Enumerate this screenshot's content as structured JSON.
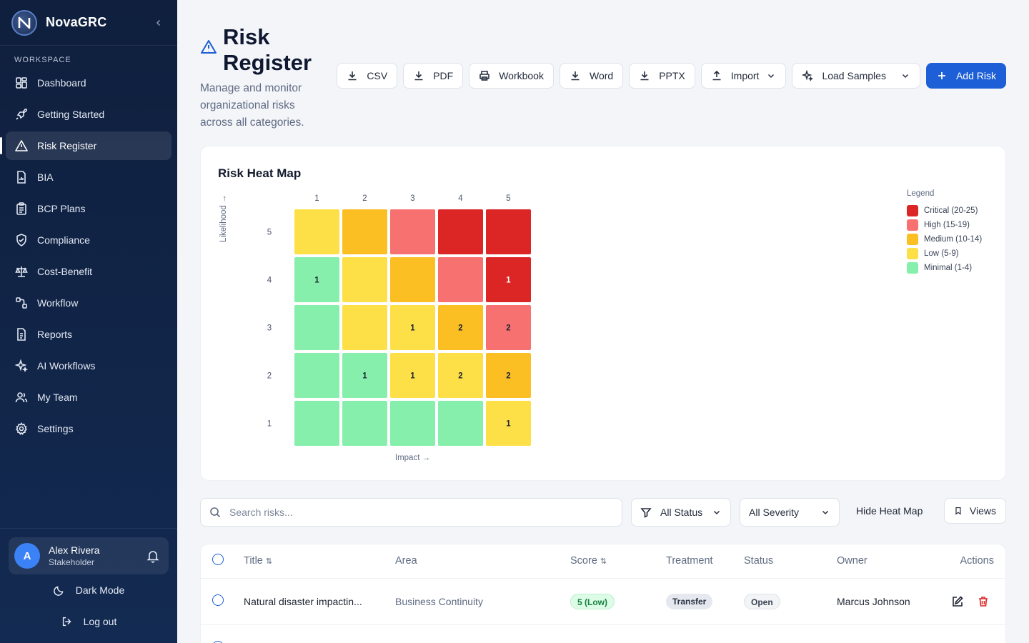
{
  "app": {
    "name": "NovaGRC"
  },
  "sidebar": {
    "section_label": "WORKSPACE",
    "items": [
      {
        "label": "Dashboard",
        "icon": "dashboard-icon"
      },
      {
        "label": "Getting Started",
        "icon": "rocket-icon"
      },
      {
        "label": "Risk Register",
        "icon": "warning-icon",
        "active": true
      },
      {
        "label": "BIA",
        "icon": "document-chart-icon"
      },
      {
        "label": "BCP Plans",
        "icon": "clipboard-icon"
      },
      {
        "label": "Compliance",
        "icon": "shield-check-icon"
      },
      {
        "label": "Cost-Benefit",
        "icon": "scale-icon"
      },
      {
        "label": "Workflow",
        "icon": "workflow-icon"
      },
      {
        "label": "Reports",
        "icon": "report-icon"
      },
      {
        "label": "AI Workflows",
        "icon": "sparkles-icon"
      },
      {
        "label": "My Team",
        "icon": "team-icon"
      },
      {
        "label": "Settings",
        "icon": "gear-icon"
      }
    ],
    "user": {
      "initial": "A",
      "name": "Alex Rivera",
      "role": "Stakeholder"
    },
    "dark_mode_label": "Dark Mode",
    "logout_label": "Log out"
  },
  "header": {
    "title_line1": "Risk",
    "title_line2": "Register",
    "subtitle": "Manage and monitor organizational risks across all categories."
  },
  "toolbar": {
    "csv": "CSV",
    "pdf": "PDF",
    "workbook": "Workbook",
    "word": "Word",
    "pptx": "PPTX",
    "import": "Import",
    "load_samples": "Load Samples",
    "add_risk": "Add Risk"
  },
  "heatmap": {
    "title": "Risk Heat Map",
    "x_label": "Impact →",
    "y_label": "Likelihood →",
    "impact_ticks": [
      "1",
      "2",
      "3",
      "4",
      "5"
    ],
    "likelihood_ticks": [
      "5",
      "4",
      "3",
      "2",
      "1"
    ],
    "rows": [
      {
        "likelihood": 5,
        "cells": [
          {
            "level": "low",
            "count": ""
          },
          {
            "level": "medium",
            "count": ""
          },
          {
            "level": "high",
            "count": ""
          },
          {
            "level": "critical",
            "count": ""
          },
          {
            "level": "critical",
            "count": ""
          }
        ]
      },
      {
        "likelihood": 4,
        "cells": [
          {
            "level": "minimal",
            "count": "1"
          },
          {
            "level": "low",
            "count": ""
          },
          {
            "level": "medium",
            "count": ""
          },
          {
            "level": "high",
            "count": ""
          },
          {
            "level": "critical",
            "count": "1"
          }
        ]
      },
      {
        "likelihood": 3,
        "cells": [
          {
            "level": "minimal",
            "count": ""
          },
          {
            "level": "low",
            "count": ""
          },
          {
            "level": "low",
            "count": "1"
          },
          {
            "level": "medium",
            "count": "2"
          },
          {
            "level": "high",
            "count": "2"
          }
        ]
      },
      {
        "likelihood": 2,
        "cells": [
          {
            "level": "minimal",
            "count": ""
          },
          {
            "level": "minimal",
            "count": "1"
          },
          {
            "level": "low",
            "count": "1"
          },
          {
            "level": "low",
            "count": "2"
          },
          {
            "level": "medium",
            "count": "2"
          }
        ]
      },
      {
        "likelihood": 1,
        "cells": [
          {
            "level": "minimal",
            "count": ""
          },
          {
            "level": "minimal",
            "count": ""
          },
          {
            "level": "minimal",
            "count": ""
          },
          {
            "level": "minimal",
            "count": ""
          },
          {
            "level": "low",
            "count": "1"
          }
        ]
      }
    ],
    "colors": {
      "critical": "#dc2626",
      "high": "#f87171",
      "medium": "#fbbf24",
      "low": "#fde047",
      "minimal": "#86efac"
    },
    "legend_title": "Legend",
    "legend": [
      {
        "label": "Critical (20-25)",
        "level": "critical"
      },
      {
        "label": "High (15-19)",
        "level": "high"
      },
      {
        "label": "Medium (10-14)",
        "level": "medium"
      },
      {
        "label": "Low (5-9)",
        "level": "low"
      },
      {
        "label": "Minimal (1-4)",
        "level": "minimal"
      }
    ]
  },
  "filters": {
    "search_placeholder": "Search risks...",
    "status": "All Status",
    "severity": "All Severity",
    "hide_heatmap": "Hide Heat Map",
    "views": "Views"
  },
  "table": {
    "columns": [
      "Title",
      "Area",
      "Score",
      "Treatment",
      "Status",
      "Owner",
      "Actions"
    ],
    "rows": [
      {
        "title": "Natural disaster impactin...",
        "area": "Business Continuity",
        "score": "5 (Low)",
        "treatment": "Transfer",
        "status": "Open",
        "owner": "Marcus Johnson"
      }
    ]
  },
  "accent_color": "#1d5fd6"
}
